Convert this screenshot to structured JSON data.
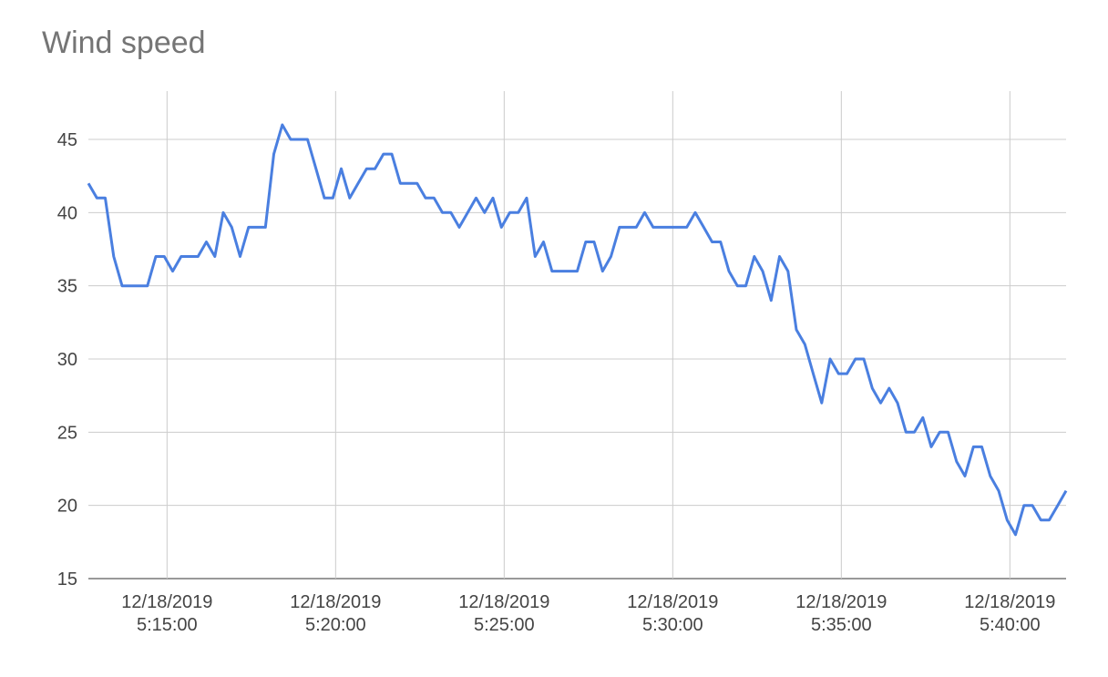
{
  "chart_data": {
    "type": "line",
    "title": "Wind speed",
    "x": [
      "12/18/2019 5:12:40",
      "12/18/2019 5:12:55",
      "12/18/2019 5:13:10",
      "12/18/2019 5:13:25",
      "12/18/2019 5:13:40",
      "12/18/2019 5:13:55",
      "12/18/2019 5:14:10",
      "12/18/2019 5:14:25",
      "12/18/2019 5:14:40",
      "12/18/2019 5:14:55",
      "12/18/2019 5:15:10",
      "12/18/2019 5:15:25",
      "12/18/2019 5:15:40",
      "12/18/2019 5:15:55",
      "12/18/2019 5:16:10",
      "12/18/2019 5:16:25",
      "12/18/2019 5:16:40",
      "12/18/2019 5:16:55",
      "12/18/2019 5:17:10",
      "12/18/2019 5:17:25",
      "12/18/2019 5:17:40",
      "12/18/2019 5:17:55",
      "12/18/2019 5:18:10",
      "12/18/2019 5:18:25",
      "12/18/2019 5:18:40",
      "12/18/2019 5:18:55",
      "12/18/2019 5:19:10",
      "12/18/2019 5:19:25",
      "12/18/2019 5:19:40",
      "12/18/2019 5:19:55",
      "12/18/2019 5:20:10",
      "12/18/2019 5:20:25",
      "12/18/2019 5:20:40",
      "12/18/2019 5:20:55",
      "12/18/2019 5:21:10",
      "12/18/2019 5:21:25",
      "12/18/2019 5:21:40",
      "12/18/2019 5:21:55",
      "12/18/2019 5:22:10",
      "12/18/2019 5:22:25",
      "12/18/2019 5:22:40",
      "12/18/2019 5:22:55",
      "12/18/2019 5:23:10",
      "12/18/2019 5:23:25",
      "12/18/2019 5:23:40",
      "12/18/2019 5:23:55",
      "12/18/2019 5:24:10",
      "12/18/2019 5:24:25",
      "12/18/2019 5:24:40",
      "12/18/2019 5:24:55",
      "12/18/2019 5:25:10",
      "12/18/2019 5:25:25",
      "12/18/2019 5:25:40",
      "12/18/2019 5:25:55",
      "12/18/2019 5:26:10",
      "12/18/2019 5:26:25",
      "12/18/2019 5:26:40",
      "12/18/2019 5:26:55",
      "12/18/2019 5:27:10",
      "12/18/2019 5:27:25",
      "12/18/2019 5:27:40",
      "12/18/2019 5:27:55",
      "12/18/2019 5:28:10",
      "12/18/2019 5:28:25",
      "12/18/2019 5:28:40",
      "12/18/2019 5:28:55",
      "12/18/2019 5:29:10",
      "12/18/2019 5:29:25",
      "12/18/2019 5:29:40",
      "12/18/2019 5:29:55",
      "12/18/2019 5:30:10",
      "12/18/2019 5:30:25",
      "12/18/2019 5:30:40",
      "12/18/2019 5:30:55",
      "12/18/2019 5:31:10",
      "12/18/2019 5:31:25",
      "12/18/2019 5:31:40",
      "12/18/2019 5:31:55",
      "12/18/2019 5:32:10",
      "12/18/2019 5:32:25",
      "12/18/2019 5:32:40",
      "12/18/2019 5:32:55",
      "12/18/2019 5:33:10",
      "12/18/2019 5:33:25",
      "12/18/2019 5:33:40",
      "12/18/2019 5:33:55",
      "12/18/2019 5:34:10",
      "12/18/2019 5:34:25",
      "12/18/2019 5:34:40",
      "12/18/2019 5:34:55",
      "12/18/2019 5:35:10",
      "12/18/2019 5:35:25",
      "12/18/2019 5:35:40",
      "12/18/2019 5:35:55",
      "12/18/2019 5:36:10",
      "12/18/2019 5:36:25",
      "12/18/2019 5:36:40",
      "12/18/2019 5:36:55",
      "12/18/2019 5:37:10",
      "12/18/2019 5:37:25",
      "12/18/2019 5:37:40",
      "12/18/2019 5:37:55",
      "12/18/2019 5:38:10",
      "12/18/2019 5:38:25",
      "12/18/2019 5:38:40",
      "12/18/2019 5:38:55",
      "12/18/2019 5:39:10",
      "12/18/2019 5:39:25",
      "12/18/2019 5:39:40",
      "12/18/2019 5:39:55",
      "12/18/2019 5:40:10",
      "12/18/2019 5:40:25",
      "12/18/2019 5:40:40",
      "12/18/2019 5:40:55",
      "12/18/2019 5:41:10",
      "12/18/2019 5:41:25",
      "12/18/2019 5:41:40"
    ],
    "series": [
      {
        "color": "#4a7fe0",
        "values": [
          42,
          41,
          41,
          37,
          35,
          35,
          35,
          35,
          37,
          37,
          36,
          37,
          37,
          37,
          38,
          37,
          40,
          39,
          37,
          39,
          39,
          39,
          44,
          46,
          45,
          45,
          45,
          43,
          41,
          41,
          43,
          41,
          42,
          43,
          43,
          44,
          44,
          42,
          42,
          42,
          41,
          41,
          40,
          40,
          39,
          40,
          41,
          40,
          41,
          39,
          40,
          40,
          41,
          37,
          38,
          36,
          36,
          36,
          36,
          38,
          38,
          36,
          37,
          39,
          39,
          39,
          40,
          39,
          39,
          39,
          39,
          39,
          40,
          39,
          38,
          38,
          36,
          35,
          35,
          37,
          36,
          34,
          37,
          36,
          32,
          31,
          29,
          27,
          30,
          29,
          29,
          30,
          30,
          28,
          27,
          28,
          27,
          25,
          25,
          26,
          24,
          25,
          25,
          23,
          22,
          24,
          24,
          22,
          21,
          19,
          18,
          20,
          20,
          19,
          19,
          20,
          21
        ]
      }
    ],
    "xlim": [
      "12/18/2019 5:12:40",
      "12/18/2019 5:41:40"
    ],
    "xticks": [
      {
        "value": "12/18/2019 5:15:00",
        "label": [
          "12/18/2019",
          "5:15:00"
        ]
      },
      {
        "value": "12/18/2019 5:20:00",
        "label": [
          "12/18/2019",
          "5:20:00"
        ]
      },
      {
        "value": "12/18/2019 5:25:00",
        "label": [
          "12/18/2019",
          "5:25:00"
        ]
      },
      {
        "value": "12/18/2019 5:30:00",
        "label": [
          "12/18/2019",
          "5:30:00"
        ]
      },
      {
        "value": "12/18/2019 5:35:00",
        "label": [
          "12/18/2019",
          "5:35:00"
        ]
      },
      {
        "value": "12/18/2019 5:40:00",
        "label": [
          "12/18/2019",
          "5:40:00"
        ]
      }
    ],
    "ylim": [
      15,
      48.3
    ],
    "yticks": [
      15,
      20,
      25,
      30,
      35,
      40,
      45
    ],
    "grid": true
  }
}
